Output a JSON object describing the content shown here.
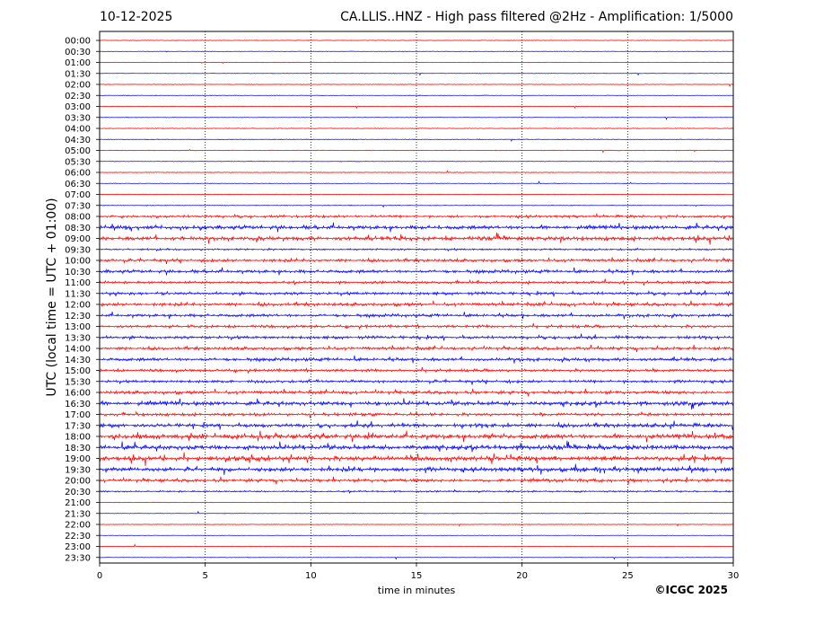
{
  "header": {
    "date": "10-12-2025",
    "title": "CA.LLIS..HNZ - High pass filtered @2Hz - Amplification: 1/5000"
  },
  "footer": {
    "copyright": "©ICGC 2025"
  },
  "chart_data": {
    "type": "line",
    "title": "CA.LLIS..HNZ - High pass filtered @2Hz - Amplification: 1/5000",
    "xlabel": "time in minutes",
    "ylabel": "UTC (local time = UTC + 01:00)",
    "xlim": [
      0,
      30
    ],
    "xticks": [
      0,
      5,
      10,
      15,
      20,
      25,
      30
    ],
    "grid": "vertical dotted at 5-minute intervals",
    "colors": {
      "even_rows": "#ff0000",
      "odd_rows": "#0000ff"
    },
    "rows": [
      {
        "label": "00:00",
        "activity": 0.02
      },
      {
        "label": "00:30",
        "activity": 0.02
      },
      {
        "label": "01:00",
        "activity": 0.02
      },
      {
        "label": "01:30",
        "activity": 0.02
      },
      {
        "label": "02:00",
        "activity": 0.03
      },
      {
        "label": "02:30",
        "activity": 0.03
      },
      {
        "label": "03:00",
        "activity": 0.02
      },
      {
        "label": "03:30",
        "activity": 0.03
      },
      {
        "label": "04:00",
        "activity": 0.04
      },
      {
        "label": "04:30",
        "activity": 0.05
      },
      {
        "label": "05:00",
        "activity": 0.05
      },
      {
        "label": "05:30",
        "activity": 0.03
      },
      {
        "label": "06:00",
        "activity": 0.04
      },
      {
        "label": "06:30",
        "activity": 0.04
      },
      {
        "label": "07:00",
        "activity": 0.03
      },
      {
        "label": "07:30",
        "activity": 0.05
      },
      {
        "label": "08:00",
        "activity": 0.45
      },
      {
        "label": "08:30",
        "activity": 0.75
      },
      {
        "label": "09:00",
        "activity": 0.8
      },
      {
        "label": "09:30",
        "activity": 0.3
      },
      {
        "label": "10:00",
        "activity": 0.55
      },
      {
        "label": "10:30",
        "activity": 0.6
      },
      {
        "label": "11:00",
        "activity": 0.45
      },
      {
        "label": "11:30",
        "activity": 0.55
      },
      {
        "label": "12:00",
        "activity": 0.6
      },
      {
        "label": "12:30",
        "activity": 0.55
      },
      {
        "label": "13:00",
        "activity": 0.5
      },
      {
        "label": "13:30",
        "activity": 0.55
      },
      {
        "label": "14:00",
        "activity": 0.55
      },
      {
        "label": "14:30",
        "activity": 0.6
      },
      {
        "label": "15:00",
        "activity": 0.5
      },
      {
        "label": "15:30",
        "activity": 0.5
      },
      {
        "label": "16:00",
        "activity": 0.6
      },
      {
        "label": "16:30",
        "activity": 0.8
      },
      {
        "label": "17:00",
        "activity": 0.55
      },
      {
        "label": "17:30",
        "activity": 0.75
      },
      {
        "label": "18:00",
        "activity": 0.9
      },
      {
        "label": "18:30",
        "activity": 0.9
      },
      {
        "label": "19:00",
        "activity": 0.95
      },
      {
        "label": "19:30",
        "activity": 0.85
      },
      {
        "label": "20:00",
        "activity": 0.6
      },
      {
        "label": "20:30",
        "activity": 0.25
      },
      {
        "label": "21:00",
        "activity": 0.02
      },
      {
        "label": "21:30",
        "activity": 0.02
      },
      {
        "label": "22:00",
        "activity": 0.02
      },
      {
        "label": "22:30",
        "activity": 0.02
      },
      {
        "label": "23:00",
        "activity": 0.02
      },
      {
        "label": "23:30",
        "activity": 0.02
      }
    ]
  }
}
